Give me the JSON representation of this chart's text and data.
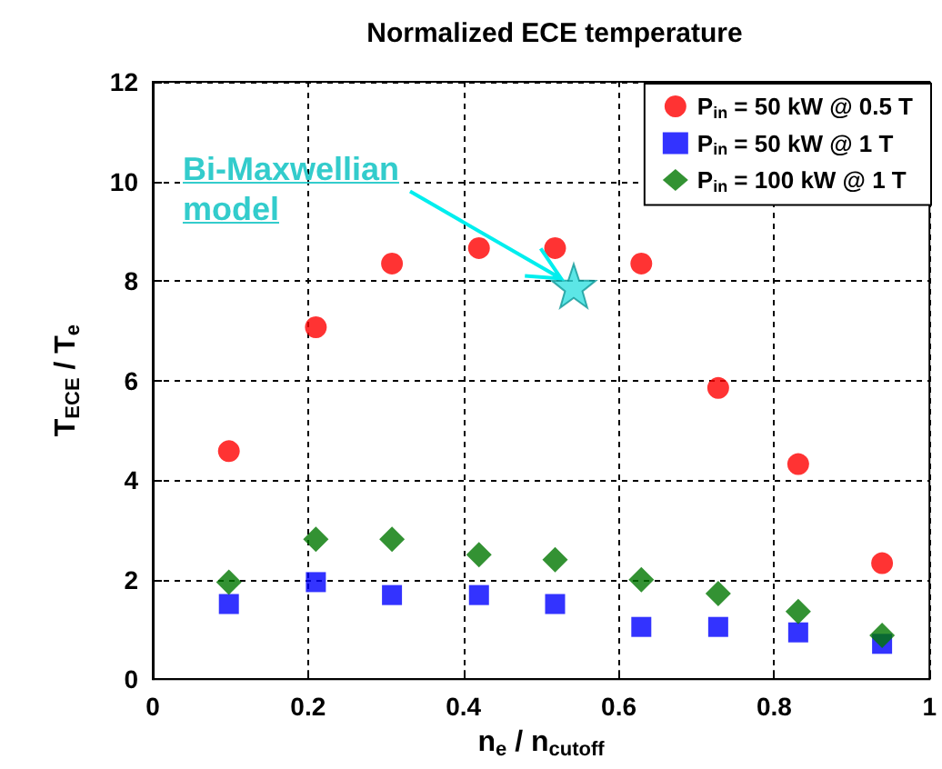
{
  "chart_data": {
    "type": "scatter",
    "title": "Normalized ECE temperature",
    "xlabel": "n$_{e}$ / n$_{cutoff}$",
    "ylabel": "T$_{ECE}$ / T$_{e}$",
    "x": [
      0.098,
      0.21,
      0.308,
      0.42,
      0.518,
      0.629,
      0.728,
      0.831,
      0.939
    ],
    "series": [
      {
        "name": "P$_{in}$ = 50 kW @ 0.5 T",
        "color": "#ff0000",
        "marker": "circle",
        "values": [
          4.58,
          7.07,
          8.35,
          8.66,
          8.66,
          8.35,
          5.85,
          4.32,
          2.33
        ]
      },
      {
        "name": "P$_{in}$ = 50 kW @ 1 T",
        "color": "#0000ff",
        "marker": "square",
        "values": [
          1.51,
          1.95,
          1.69,
          1.69,
          1.51,
          1.05,
          1.05,
          0.94,
          0.71
        ]
      },
      {
        "name": "P$_{in}$ = 100 kW @ 1 T",
        "color": "#007700",
        "marker": "diamond",
        "values": [
          1.95,
          2.81,
          2.81,
          2.5,
          2.4,
          2.0,
          1.72,
          1.36,
          0.88
        ]
      },
      {
        "color": "#33e0e0",
        "marker": "star",
        "x": [
          0.542
        ],
        "values": [
          7.9
        ]
      }
    ],
    "annotations": [
      {
        "text": "Bi-Maxwellian model",
        "x": 0.542,
        "y": 7.9
      }
    ],
    "xlim": [
      0,
      1
    ],
    "xticks": [
      0,
      0.2,
      0.4,
      0.6,
      0.8,
      1
    ],
    "ylim": [
      0,
      12
    ],
    "yticks": [
      0,
      2,
      4,
      6,
      8,
      10,
      12
    ],
    "grid": true,
    "legend": "top right"
  }
}
